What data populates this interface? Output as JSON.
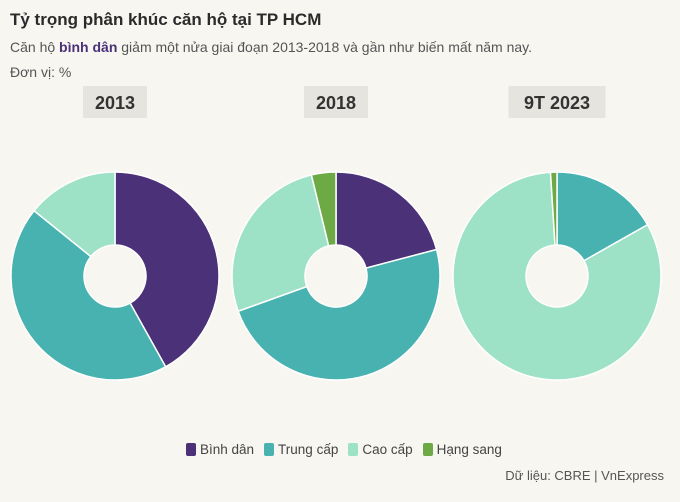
{
  "header": {
    "title": "Tỷ trọng phân khúc căn hộ tại TP HCM",
    "subtitle_prefix": "Căn hộ ",
    "subtitle_highlight": "bình dân",
    "subtitle_suffix": " giảm một nửa giai đoạn 2013-2018 và gần như biến mất năm nay.",
    "unit": "Đơn vị: %"
  },
  "colors": {
    "binh_dan": "#4a3178",
    "trung_cap": "#47b2b0",
    "cao_cap": "#9de2c6",
    "hang_sang": "#6daa45",
    "year_label_bg": "#e6e4df"
  },
  "chart_data": {
    "type": "pie",
    "variant": "donut",
    "series_names": [
      "Bình dân",
      "Trung cấp",
      "Cao cấp",
      "Hạng sang"
    ],
    "charts": [
      {
        "label": "2013",
        "values": [
          41.9,
          43.9,
          14.2,
          0
        ]
      },
      {
        "label": "2018",
        "values": [
          20.9,
          48.6,
          26.7,
          3.8
        ]
      },
      {
        "label": "9T 2023",
        "values": [
          0,
          16.8,
          82.2,
          1.0
        ]
      }
    ],
    "legend_position": "bottom"
  },
  "legend": {
    "items": [
      {
        "label": "Bình dân",
        "color": "#4a3178"
      },
      {
        "label": "Trung cấp",
        "color": "#47b2b0"
      },
      {
        "label": "Cao cấp",
        "color": "#9de2c6"
      },
      {
        "label": "Hạng sang",
        "color": "#6daa45"
      }
    ]
  },
  "footer": {
    "source": "Dữ liệu: CBRE | VnExpress"
  }
}
